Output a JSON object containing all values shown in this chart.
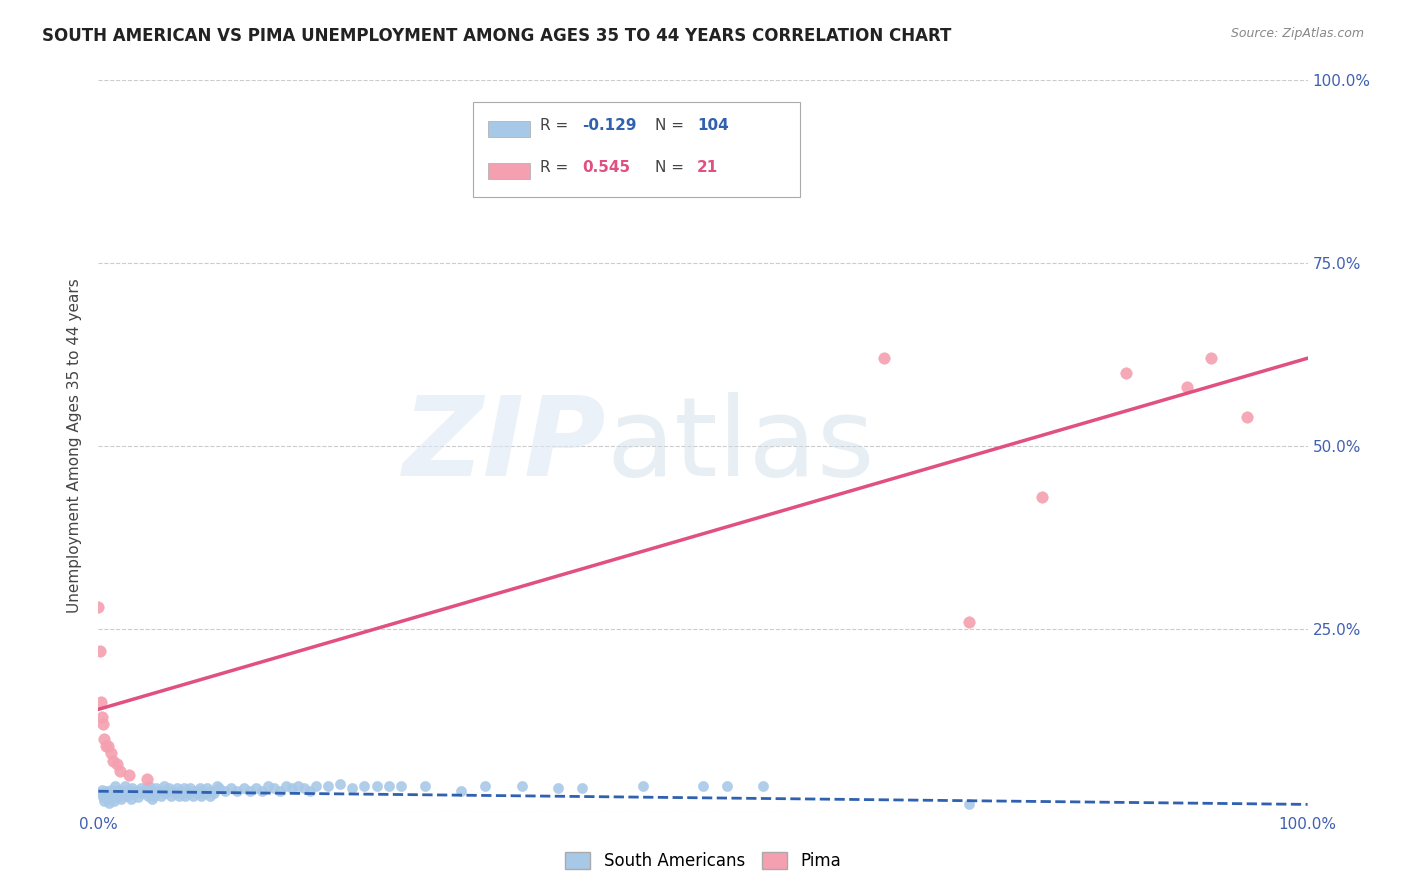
{
  "title": "SOUTH AMERICAN VS PIMA UNEMPLOYMENT AMONG AGES 35 TO 44 YEARS CORRELATION CHART",
  "source": "Source: ZipAtlas.com",
  "ylabel": "Unemployment Among Ages 35 to 44 years",
  "xlim": [
    0,
    1.0
  ],
  "ylim": [
    0,
    1.0
  ],
  "xticks": [
    0.0,
    0.25,
    0.5,
    0.75,
    1.0
  ],
  "xtick_labels": [
    "0.0%",
    "",
    "",
    "",
    "100.0%"
  ],
  "ytick_vals": [
    0.0,
    0.25,
    0.5,
    0.75,
    1.0
  ],
  "ytick_labels_right": [
    "",
    "25.0%",
    "50.0%",
    "75.0%",
    "100.0%"
  ],
  "blue_color": "#a8c8e8",
  "pink_color": "#f4a0b0",
  "blue_line_color": "#3060b0",
  "pink_line_color": "#e05080",
  "blue_R": "-0.129",
  "blue_N": "104",
  "pink_R": "0.545",
  "pink_N": "21",
  "legend_label_blue": "South Americans",
  "legend_label_pink": "Pima",
  "blue_scatter_x": [
    0.002,
    0.003,
    0.004,
    0.005,
    0.006,
    0.007,
    0.008,
    0.009,
    0.01,
    0.011,
    0.012,
    0.013,
    0.014,
    0.015,
    0.016,
    0.017,
    0.018,
    0.019,
    0.02,
    0.022,
    0.024,
    0.025,
    0.026,
    0.027,
    0.028,
    0.03,
    0.032,
    0.033,
    0.035,
    0.036,
    0.038,
    0.04,
    0.041,
    0.042,
    0.043,
    0.044,
    0.045,
    0.046,
    0.048,
    0.05,
    0.052,
    0.054,
    0.055,
    0.056,
    0.058,
    0.06,
    0.062,
    0.064,
    0.065,
    0.067,
    0.068,
    0.07,
    0.071,
    0.072,
    0.073,
    0.074,
    0.076,
    0.078,
    0.08,
    0.082,
    0.084,
    0.085,
    0.086,
    0.088,
    0.09,
    0.092,
    0.094,
    0.096,
    0.098,
    0.1,
    0.105,
    0.11,
    0.115,
    0.12,
    0.125,
    0.13,
    0.135,
    0.14,
    0.145,
    0.15,
    0.155,
    0.16,
    0.165,
    0.17,
    0.175,
    0.18,
    0.19,
    0.2,
    0.21,
    0.22,
    0.23,
    0.24,
    0.25,
    0.27,
    0.3,
    0.32,
    0.35,
    0.38,
    0.4,
    0.45,
    0.5,
    0.52,
    0.55,
    0.72
  ],
  "blue_scatter_y": [
    0.025,
    0.03,
    0.02,
    0.015,
    0.028,
    0.022,
    0.018,
    0.012,
    0.03,
    0.025,
    0.02,
    0.015,
    0.035,
    0.025,
    0.02,
    0.03,
    0.022,
    0.018,
    0.028,
    0.035,
    0.022,
    0.03,
    0.025,
    0.018,
    0.032,
    0.025,
    0.028,
    0.02,
    0.032,
    0.025,
    0.028,
    0.032,
    0.022,
    0.035,
    0.025,
    0.018,
    0.028,
    0.022,
    0.032,
    0.028,
    0.022,
    0.035,
    0.025,
    0.028,
    0.032,
    0.022,
    0.028,
    0.025,
    0.032,
    0.022,
    0.028,
    0.025,
    0.032,
    0.022,
    0.028,
    0.025,
    0.032,
    0.022,
    0.028,
    0.025,
    0.032,
    0.022,
    0.028,
    0.025,
    0.032,
    0.022,
    0.028,
    0.025,
    0.035,
    0.032,
    0.028,
    0.032,
    0.028,
    0.032,
    0.028,
    0.032,
    0.028,
    0.035,
    0.032,
    0.028,
    0.035,
    0.032,
    0.035,
    0.032,
    0.028,
    0.035,
    0.035,
    0.038,
    0.032,
    0.035,
    0.035,
    0.035,
    0.035,
    0.035,
    0.028,
    0.035,
    0.035,
    0.032,
    0.032,
    0.035,
    0.035,
    0.035,
    0.035,
    0.01
  ],
  "pink_scatter_x": [
    0.0,
    0.001,
    0.002,
    0.003,
    0.004,
    0.005,
    0.006,
    0.008,
    0.01,
    0.012,
    0.015,
    0.018,
    0.025,
    0.04,
    0.65,
    0.72,
    0.78,
    0.85,
    0.9,
    0.92,
    0.95
  ],
  "pink_scatter_y": [
    0.28,
    0.22,
    0.15,
    0.13,
    0.12,
    0.1,
    0.09,
    0.09,
    0.08,
    0.07,
    0.065,
    0.055,
    0.05,
    0.045,
    0.62,
    0.26,
    0.43,
    0.6,
    0.58,
    0.62,
    0.54
  ],
  "blue_trendline_x": [
    0.0,
    1.0
  ],
  "blue_trendline_y": [
    0.028,
    0.01
  ],
  "pink_trendline_x": [
    0.0,
    1.0
  ],
  "pink_trendline_y": [
    0.14,
    0.62
  ]
}
